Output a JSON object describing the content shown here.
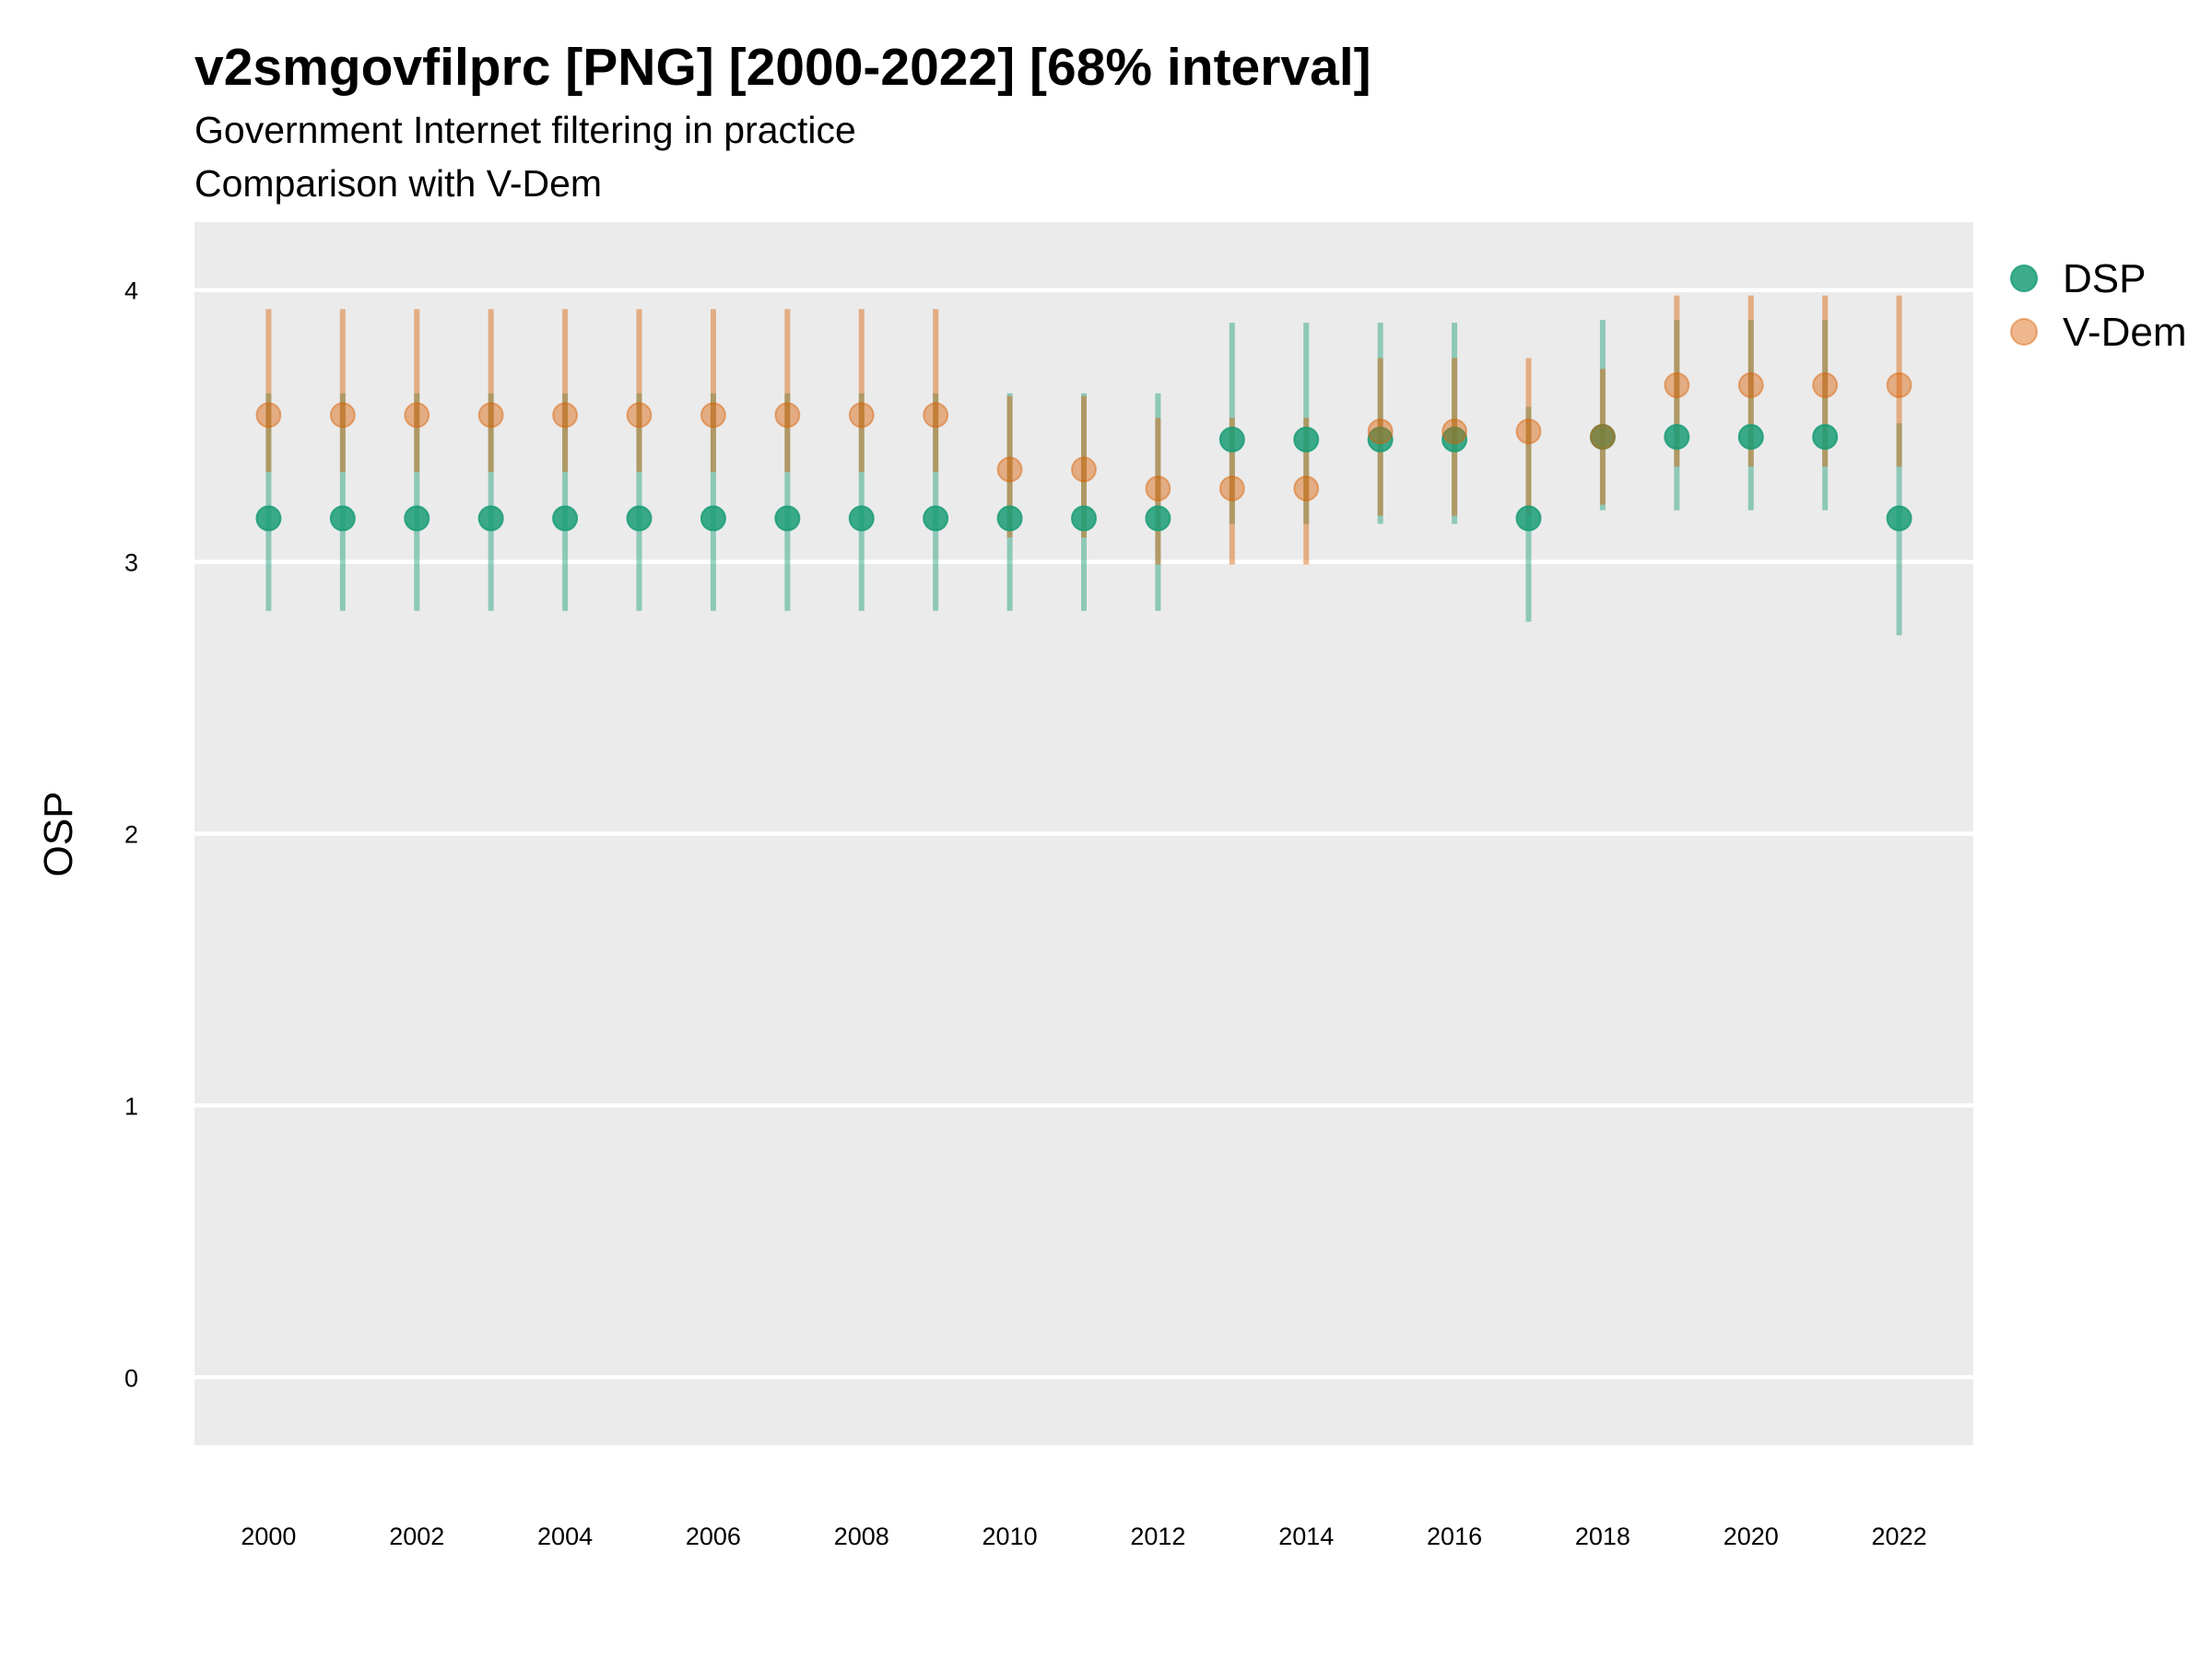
{
  "chart_data": {
    "type": "scatter",
    "title": "v2smgovfilprc [PNG] [2000-2022] [68% interval]",
    "subtitle_lines": [
      "Government Internet filtering in practice",
      "Comparison with V-Dem"
    ],
    "xlabel": "",
    "ylabel": "OSP",
    "xlim": [
      1999,
      2023
    ],
    "ylim": [
      -0.25,
      4.25
    ],
    "x_ticks": [
      2000,
      2002,
      2004,
      2006,
      2008,
      2010,
      2012,
      2014,
      2016,
      2018,
      2020,
      2022
    ],
    "y_ticks": [
      0,
      1,
      2,
      3,
      4
    ],
    "grid": true,
    "legend_position": "right",
    "series": [
      {
        "name": "DSP",
        "color": "#1b9e77",
        "x": [
          2000,
          2001,
          2002,
          2003,
          2004,
          2005,
          2006,
          2007,
          2008,
          2009,
          2010,
          2011,
          2012,
          2013,
          2014,
          2015,
          2016,
          2017,
          2018,
          2019,
          2020,
          2021,
          2022
        ],
        "y": [
          3.16,
          3.16,
          3.16,
          3.16,
          3.16,
          3.16,
          3.16,
          3.16,
          3.16,
          3.16,
          3.16,
          3.16,
          3.16,
          3.45,
          3.45,
          3.45,
          3.45,
          3.16,
          3.46,
          3.46,
          3.46,
          3.46,
          3.16
        ],
        "lower": [
          2.82,
          2.82,
          2.82,
          2.82,
          2.82,
          2.82,
          2.82,
          2.82,
          2.82,
          2.82,
          2.82,
          2.82,
          2.82,
          3.14,
          3.14,
          3.14,
          3.14,
          2.78,
          3.19,
          3.19,
          3.19,
          3.19,
          2.73
        ],
        "upper": [
          3.62,
          3.62,
          3.62,
          3.62,
          3.62,
          3.62,
          3.62,
          3.62,
          3.62,
          3.62,
          3.62,
          3.62,
          3.62,
          3.88,
          3.88,
          3.88,
          3.88,
          3.57,
          3.89,
          3.89,
          3.89,
          3.89,
          3.51
        ]
      },
      {
        "name": "V-Dem",
        "color": "#d95f02",
        "x": [
          2000,
          2001,
          2002,
          2003,
          2004,
          2005,
          2006,
          2007,
          2008,
          2009,
          2010,
          2011,
          2012,
          2013,
          2014,
          2015,
          2016,
          2017,
          2018,
          2019,
          2020,
          2021,
          2022
        ],
        "y": [
          3.54,
          3.54,
          3.54,
          3.54,
          3.54,
          3.54,
          3.54,
          3.54,
          3.54,
          3.54,
          3.34,
          3.34,
          3.27,
          3.27,
          3.27,
          3.48,
          3.48,
          3.48,
          3.46,
          3.65,
          3.65,
          3.65,
          3.65
        ],
        "lower": [
          3.33,
          3.33,
          3.33,
          3.33,
          3.33,
          3.33,
          3.33,
          3.33,
          3.33,
          3.33,
          3.09,
          3.09,
          2.99,
          2.99,
          2.99,
          3.17,
          3.17,
          3.17,
          3.21,
          3.35,
          3.35,
          3.35,
          3.35
        ],
        "upper": [
          3.93,
          3.93,
          3.93,
          3.93,
          3.93,
          3.93,
          3.93,
          3.93,
          3.93,
          3.93,
          3.61,
          3.61,
          3.53,
          3.53,
          3.53,
          3.75,
          3.75,
          3.75,
          3.71,
          3.98,
          3.98,
          3.98,
          3.98
        ]
      }
    ]
  }
}
